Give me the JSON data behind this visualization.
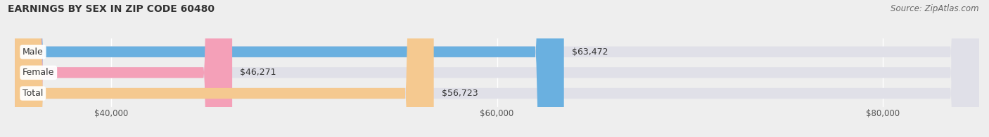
{
  "title": "EARNINGS BY SEX IN ZIP CODE 60480",
  "source": "Source: ZipAtlas.com",
  "categories": [
    "Male",
    "Female",
    "Total"
  ],
  "values": [
    63472,
    46271,
    56723
  ],
  "bar_colors": [
    "#6ab0e0",
    "#f4a0b8",
    "#f5c990"
  ],
  "bar_labels": [
    "$63,472",
    "$46,271",
    "$56,723"
  ],
  "xmin": 35000,
  "xmax": 85000,
  "xticks": [
    40000,
    60000,
    80000
  ],
  "xtick_labels": [
    "$40,000",
    "$60,000",
    "$80,000"
  ],
  "background_color": "#eeeeee",
  "bar_bg_color": "#e0e0e8",
  "title_fontsize": 10,
  "source_fontsize": 8.5,
  "bar_height": 0.52,
  "bar_label_fontsize": 9,
  "axis_label_fontsize": 8.5
}
